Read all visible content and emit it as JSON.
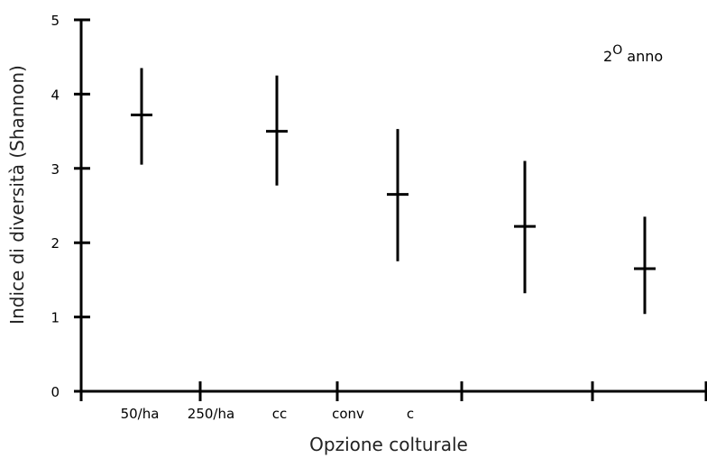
{
  "chart_data": {
    "type": "errorbar",
    "xlabel": "Opzione colturale",
    "ylabel": "Indice di diversità (Shannon)",
    "ylim": [
      0,
      5
    ],
    "yticks": [
      "0",
      "1",
      "2",
      "3",
      "4",
      "5"
    ],
    "category_labels": [
      "50/ha",
      "250/ha",
      "cc",
      "conv",
      "c"
    ],
    "annotation": {
      "main": "2",
      "superscript": "O",
      "rest": " anno"
    },
    "points": [
      {
        "mean": 3.72,
        "low": 3.05,
        "high": 4.35
      },
      {
        "mean": 3.5,
        "low": 2.77,
        "high": 4.25
      },
      {
        "mean": 2.65,
        "low": 1.75,
        "high": 3.53
      },
      {
        "mean": 2.22,
        "low": 1.32,
        "high": 3.1
      },
      {
        "mean": 1.65,
        "low": 1.04,
        "high": 2.35
      }
    ],
    "grid": false,
    "color": "#000000"
  }
}
